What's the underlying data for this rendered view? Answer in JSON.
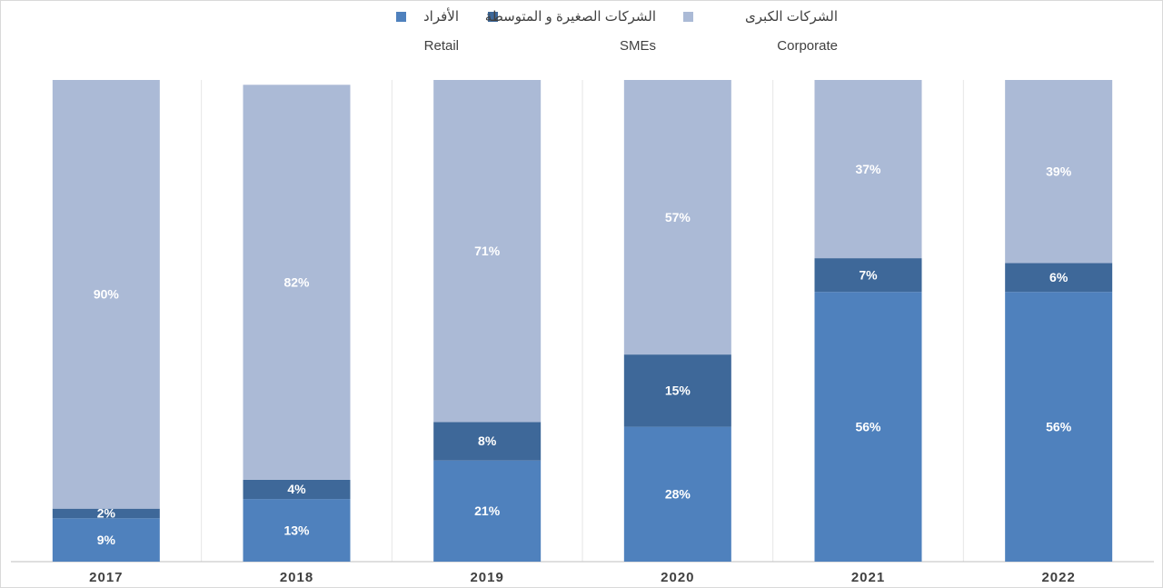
{
  "chart_data": {
    "type": "stacked_bar",
    "categories": [
      "2017",
      "2018",
      "2019",
      "2020",
      "2021",
      "2022"
    ],
    "series": [
      {
        "name": "الأفراد",
        "name_en": "Retail",
        "color": "#4f81bd",
        "values": [
          9,
          13,
          21,
          28,
          56,
          56
        ],
        "value_labels": [
          "9%",
          "13%",
          "21%",
          "28%",
          "56%",
          "56%"
        ]
      },
      {
        "name": "الشركات الصغيرة و المتوسطة",
        "name_en": "SMEs",
        "color": "#3e6899",
        "values": [
          2,
          4,
          8,
          15,
          7,
          6
        ],
        "value_labels": [
          "2%",
          "4%",
          "8%",
          "15%",
          "7%",
          "6%"
        ]
      },
      {
        "name": "الشركات الكبرى",
        "name_en": "Corporate",
        "color": "#abbad6",
        "values": [
          90,
          82,
          71,
          57,
          37,
          39
        ],
        "value_labels": [
          "90%",
          "82%",
          "71%",
          "57%",
          "37%",
          "39%"
        ]
      }
    ],
    "ylim": [
      0,
      100
    ]
  }
}
